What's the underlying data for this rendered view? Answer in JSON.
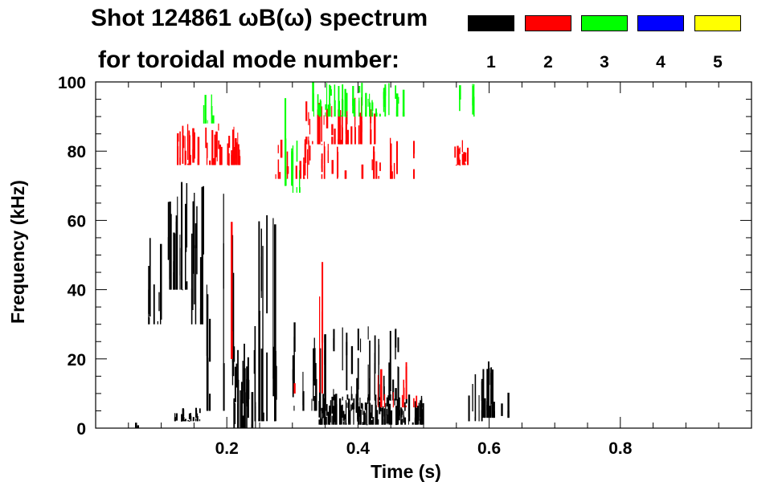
{
  "chart_data": {
    "type": "heatmap",
    "title_line1": "Shot 124861 ωB(ω) spectrum",
    "title_line2": "for toroidal mode number:",
    "xlabel": "Time (s)",
    "ylabel": "Frequency (kHz)",
    "xlim": [
      0.0,
      1.0
    ],
    "ylim": [
      0,
      100
    ],
    "xticks": [
      0.2,
      0.4,
      0.6,
      0.8
    ],
    "xtick_labels": [
      "0.2",
      "0.4",
      "0.6",
      "0.8"
    ],
    "yticks": [
      0,
      20,
      40,
      60,
      80,
      100
    ],
    "ytick_labels": [
      "0",
      "20",
      "40",
      "60",
      "80",
      "100"
    ],
    "legend": [
      {
        "label": "1",
        "color": "#000000"
      },
      {
        "label": "2",
        "color": "#ff0000"
      },
      {
        "label": "3",
        "color": "#00ff00"
      },
      {
        "label": "4",
        "color": "#0000ff"
      },
      {
        "label": "5",
        "color": "#ffff00"
      }
    ],
    "regions": [
      {
        "mode": "1",
        "t": [
          0.06,
          0.065
        ],
        "f": [
          0,
          2
        ],
        "density": 0.8
      },
      {
        "mode": "1",
        "t": [
          0.08,
          0.1
        ],
        "f": [
          30,
          58
        ],
        "density": 0.35
      },
      {
        "mode": "1",
        "t": [
          0.11,
          0.14
        ],
        "f": [
          40,
          76
        ],
        "density": 0.7
      },
      {
        "mode": "1",
        "t": [
          0.14,
          0.165
        ],
        "f": [
          30,
          72
        ],
        "density": 0.55
      },
      {
        "mode": "1",
        "t": [
          0.12,
          0.16
        ],
        "f": [
          2,
          6
        ],
        "density": 0.5
      },
      {
        "mode": "1",
        "t": [
          0.165,
          0.21
        ],
        "f": [
          5,
          76
        ],
        "density": 0.3
      },
      {
        "mode": "1",
        "t": [
          0.21,
          0.245
        ],
        "f": [
          0,
          25
        ],
        "density": 0.7
      },
      {
        "mode": "1",
        "t": [
          0.24,
          0.28
        ],
        "f": [
          2,
          66
        ],
        "density": 0.35
      },
      {
        "mode": "1",
        "t": [
          0.285,
          0.3
        ],
        "f": [
          2,
          70
        ],
        "density": 0.25
      },
      {
        "mode": "1",
        "t": [
          0.3,
          0.36
        ],
        "f": [
          5,
          32
        ],
        "density": 0.3
      },
      {
        "mode": "1",
        "t": [
          0.34,
          0.5
        ],
        "f": [
          1,
          10
        ],
        "density": 0.85
      },
      {
        "mode": "1",
        "t": [
          0.36,
          0.47
        ],
        "f": [
          8,
          30
        ],
        "density": 0.3
      },
      {
        "mode": "1",
        "t": [
          0.55,
          0.59
        ],
        "f": [
          2,
          16
        ],
        "density": 0.25
      },
      {
        "mode": "1",
        "t": [
          0.59,
          0.64
        ],
        "f": [
          3,
          20
        ],
        "density": 0.45
      },
      {
        "mode": "2",
        "t": [
          0.12,
          0.22
        ],
        "f": [
          76,
          88
        ],
        "density": 0.6
      },
      {
        "mode": "2",
        "t": [
          0.18,
          0.22
        ],
        "f": [
          20,
          76
        ],
        "density": 0.12
      },
      {
        "mode": "2",
        "t": [
          0.27,
          0.33
        ],
        "f": [
          72,
          84
        ],
        "density": 0.4
      },
      {
        "mode": "2",
        "t": [
          0.32,
          0.43
        ],
        "f": [
          82,
          96
        ],
        "density": 0.5
      },
      {
        "mode": "2",
        "t": [
          0.34,
          0.49
        ],
        "f": [
          72,
          84
        ],
        "density": 0.25
      },
      {
        "mode": "2",
        "t": [
          0.3,
          0.36
        ],
        "f": [
          10,
          48
        ],
        "density": 0.08
      },
      {
        "mode": "2",
        "t": [
          0.43,
          0.49
        ],
        "f": [
          6,
          20
        ],
        "density": 0.15
      },
      {
        "mode": "2",
        "t": [
          0.545,
          0.57
        ],
        "f": [
          76,
          84
        ],
        "density": 0.4
      },
      {
        "mode": "3",
        "t": [
          0.15,
          0.19
        ],
        "f": [
          88,
          98
        ],
        "density": 0.15
      },
      {
        "mode": "3",
        "t": [
          0.27,
          0.31
        ],
        "f": [
          70,
          100
        ],
        "density": 0.2
      },
      {
        "mode": "3",
        "t": [
          0.33,
          0.47
        ],
        "f": [
          90,
          100
        ],
        "density": 0.55
      },
      {
        "mode": "3",
        "t": [
          0.3,
          0.32
        ],
        "f": [
          68,
          84
        ],
        "density": 0.4
      },
      {
        "mode": "3",
        "t": [
          0.55,
          0.58
        ],
        "f": [
          90,
          100
        ],
        "density": 0.25
      }
    ]
  }
}
